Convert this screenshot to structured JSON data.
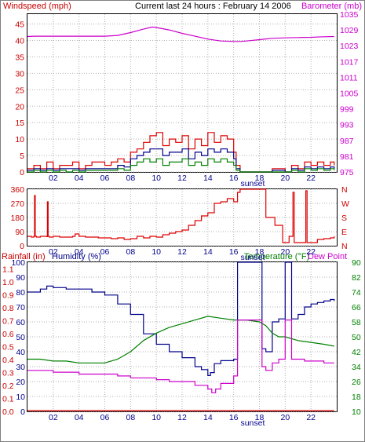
{
  "chart_data": [
    {
      "type": "line",
      "title": "Current last 24 hours : February 14 2006",
      "left_axis_label": "Windspeed (mph)",
      "right_axis_label": "Barometer (mb)",
      "left_ticks": [
        "0",
        "5",
        "10",
        "15",
        "20",
        "25",
        "30",
        "35",
        "40",
        "45"
      ],
      "right_ticks": [
        "975",
        "981",
        "987",
        "993",
        "999",
        "1005",
        "1011",
        "1017",
        "1023",
        "1029",
        "1035"
      ],
      "ylim_left": [
        0,
        48
      ],
      "ylim_right": [
        975,
        1035
      ],
      "x_ticks": [
        "02",
        "04",
        "06",
        "08",
        "10",
        "12",
        "14",
        "16",
        "18",
        "20",
        "22"
      ],
      "sunset_label": "sunset",
      "colors": {
        "wind_max": "#dd0000",
        "wind_avg": "#00008b",
        "wind_min": "#008000",
        "barometer": "#cc00cc",
        "left_axis": "#cc0000",
        "right_axis": "#cc00cc"
      },
      "series": [
        {
          "key": "barometer",
          "x": [
            0,
            0.5,
            6,
            7,
            8,
            9,
            9.7,
            10,
            11,
            12,
            13,
            14,
            15,
            16,
            16.5,
            17,
            18,
            19,
            20,
            21,
            22,
            23,
            23.8
          ],
          "values": [
            1026.5,
            1026.6,
            1026.6,
            1026.9,
            1028.0,
            1029.3,
            1030.1,
            1029.9,
            1029.0,
            1027.7,
            1026.6,
            1025.5,
            1024.8,
            1024.6,
            1024.6,
            1024.8,
            1025.3,
            1025.8,
            1026.0,
            1026.1,
            1026.2,
            1026.4,
            1026.5
          ]
        },
        {
          "key": "wind_max",
          "x": [
            0,
            0.5,
            1,
            1.5,
            2,
            2.5,
            3,
            3.5,
            4,
            4.5,
            5,
            5.5,
            6,
            6.5,
            7,
            7.5,
            8,
            8.5,
            9,
            9.5,
            10,
            10.5,
            11,
            11.5,
            12,
            12.5,
            13,
            13.5,
            14,
            14.5,
            15,
            15.5,
            16,
            16.2,
            16.5,
            17,
            18,
            19,
            20,
            20.5,
            21,
            21.5,
            22,
            22.5,
            23,
            23.5,
            23.8
          ],
          "values": [
            1,
            2,
            1,
            3,
            1,
            2,
            2,
            3,
            1,
            2,
            3,
            3,
            2,
            3,
            4,
            3,
            6,
            7,
            9,
            11,
            12,
            8,
            10,
            9,
            11,
            7,
            10,
            8,
            12,
            9,
            11,
            10,
            6,
            2,
            0,
            0,
            0,
            1,
            0,
            2,
            1,
            3,
            2,
            3,
            2,
            3,
            2
          ]
        },
        {
          "key": "wind_avg",
          "x": [
            0,
            0.5,
            1,
            1.5,
            2,
            2.5,
            3,
            3.5,
            4,
            4.5,
            5,
            5.5,
            6,
            6.5,
            7,
            7.5,
            8,
            8.5,
            9,
            9.5,
            10,
            10.5,
            11,
            11.5,
            12,
            12.5,
            13,
            13.5,
            14,
            14.5,
            15,
            15.5,
            16,
            16.2,
            16.5,
            17,
            18,
            19,
            20,
            20.5,
            21,
            21.5,
            22,
            22.5,
            23,
            23.5,
            23.8
          ],
          "values": [
            0.5,
            1,
            0.5,
            1,
            0.5,
            1,
            1,
            1,
            0.5,
            1,
            1,
            1,
            1,
            1,
            2,
            1.5,
            4,
            5,
            6,
            7,
            7,
            5,
            6,
            6,
            7,
            4,
            6,
            5,
            7,
            6,
            7,
            6,
            4,
            1,
            0,
            0,
            0,
            0.5,
            0,
            1,
            0.5,
            1.5,
            1,
            1.5,
            1,
            1.5,
            1
          ]
        },
        {
          "key": "wind_min",
          "x": [
            0,
            0.5,
            1,
            1.5,
            2,
            2.5,
            3,
            3.5,
            4,
            4.5,
            5,
            5.5,
            6,
            6.5,
            7,
            7.5,
            8,
            8.5,
            9,
            9.5,
            10,
            10.5,
            11,
            11.5,
            12,
            12.5,
            13,
            13.5,
            14,
            14.5,
            15,
            15.5,
            16,
            16.2,
            16.5,
            17,
            18,
            19,
            20,
            20.5,
            21,
            21.5,
            22,
            22.5,
            23,
            23.5,
            23.8
          ],
          "values": [
            0,
            0.5,
            0,
            0.5,
            0,
            0.5,
            0,
            0.5,
            0,
            0.5,
            0.5,
            0.5,
            0.5,
            0.5,
            1,
            0.5,
            2,
            3,
            4,
            3,
            4,
            2,
            3,
            3,
            4,
            2,
            3,
            2,
            4,
            3,
            4,
            3,
            2,
            0.5,
            0,
            0,
            0,
            0,
            0,
            0.5,
            0,
            1,
            0.5,
            1,
            0.5,
            1,
            0.5
          ]
        }
      ]
    },
    {
      "type": "line",
      "left_ticks": [
        "0",
        "90",
        "180",
        "270",
        "360"
      ],
      "right_ticks": [
        "N",
        "E",
        "S",
        "W",
        "N"
      ],
      "ylim": [
        0,
        360
      ],
      "x_ticks": [
        "02",
        "04",
        "06",
        "08",
        "10",
        "12",
        "14",
        "16",
        "18",
        "20",
        "22"
      ],
      "sunset_label": "sunset",
      "colors": {
        "direction": "#dd0000",
        "left_axis": "#cc0000",
        "right_axis": "#cc0000"
      },
      "series": [
        {
          "key": "direction",
          "x": [
            0,
            0.3,
            0.5,
            0.55,
            0.6,
            0.7,
            1,
            1.5,
            1.55,
            1.6,
            1.7,
            2,
            2.5,
            3,
            3.5,
            3.7,
            4,
            4.5,
            5,
            5.5,
            6,
            6.5,
            7,
            7.5,
            8,
            8.5,
            9,
            9.5,
            10,
            10.5,
            11,
            11.5,
            12,
            12.5,
            13,
            13.5,
            14,
            14.5,
            15,
            15.5,
            16,
            16.3,
            16.5,
            17,
            17.5,
            18,
            18.5,
            19,
            19.2,
            19.5,
            19.8,
            20,
            20.3,
            20.5,
            20.6,
            20.7,
            21,
            21.5,
            21.6,
            21.7,
            22,
            22.5,
            23,
            23.5,
            23.8
          ],
          "values": [
            60,
            55,
            60,
            320,
            60,
            55,
            60,
            58,
            280,
            60,
            55,
            60,
            55,
            55,
            60,
            75,
            60,
            55,
            55,
            50,
            50,
            45,
            50,
            40,
            45,
            60,
            50,
            60,
            55,
            70,
            80,
            90,
            100,
            130,
            160,
            190,
            210,
            270,
            280,
            300,
            280,
            340,
            360,
            360,
            360,
            360,
            180,
            180,
            130,
            130,
            20,
            20,
            60,
            60,
            340,
            20,
            20,
            20,
            350,
            20,
            20,
            40,
            45,
            50,
            60
          ]
        }
      ]
    },
    {
      "type": "line",
      "left_axis_label": "Rainfall (in)",
      "humidity_label": "Humidity (%)",
      "right_axis_label": "Temperature (°F)",
      "dewpoint_label": "Dew Point",
      "rain_ticks": [
        "0.0",
        "0.1",
        "0.2",
        "0.3",
        "0.4",
        "0.5",
        "0.6",
        "0.7",
        "0.8",
        "0.9",
        "1.0",
        "1.1"
      ],
      "humidity_ticks": [
        "0",
        "10",
        "20",
        "30",
        "40",
        "50",
        "60",
        "70",
        "80",
        "90",
        "100"
      ],
      "temp_ticks": [
        "10",
        "18",
        "26",
        "34",
        "42",
        "50",
        "58",
        "66",
        "74",
        "82",
        "90"
      ],
      "ylim_humidity": [
        0,
        100
      ],
      "ylim_temp": [
        10,
        90
      ],
      "x_ticks": [
        "02",
        "04",
        "06",
        "08",
        "10",
        "12",
        "14",
        "16",
        "18",
        "20",
        "22"
      ],
      "sunset_label": "sunset",
      "colors": {
        "rain": "#dd0000",
        "humidity": "#00008b",
        "temperature": "#008000",
        "dewpoint": "#cc00cc",
        "rain_axis": "#cc0000",
        "humidity_axis": "#00008b",
        "temp_axis": "#008000"
      },
      "series": [
        {
          "key": "humidity",
          "x": [
            0,
            1,
            1.5,
            2,
            3,
            4,
            5,
            6,
            7,
            8,
            9,
            10,
            11,
            12,
            13,
            13.5,
            14,
            14.2,
            14.5,
            15,
            16,
            16.3,
            16.5,
            17,
            17.5,
            18,
            18.2,
            18.5,
            19,
            19.5,
            20,
            20.3,
            20.5,
            21,
            21.5,
            22,
            22.5,
            23,
            23.5,
            23.8
          ],
          "values": [
            80,
            82,
            84,
            83,
            82,
            82,
            80,
            78,
            72,
            65,
            52,
            45,
            40,
            36,
            30,
            28,
            24,
            26,
            32,
            34,
            35,
            100,
            100,
            100,
            100,
            100,
            42,
            40,
            60,
            62,
            100,
            100,
            62,
            65,
            70,
            72,
            73,
            74,
            75,
            74
          ]
        },
        {
          "key": "temperature",
          "x": [
            0,
            1,
            2,
            3,
            4,
            5,
            6,
            7,
            8,
            9,
            10,
            11,
            12,
            13,
            14,
            15,
            16,
            17,
            18,
            18.5,
            19,
            19.5,
            20,
            21,
            22,
            23,
            23.8
          ],
          "values": [
            38,
            38,
            37,
            37,
            36,
            36,
            36,
            38,
            42,
            48,
            52,
            55,
            57,
            59,
            61,
            60,
            59,
            59,
            58,
            56,
            52,
            50,
            50,
            48,
            47,
            46,
            45
          ]
        },
        {
          "key": "dewpoint",
          "x": [
            0,
            1,
            2,
            3,
            4,
            5,
            6,
            7,
            8,
            9,
            10,
            11,
            12,
            13,
            14,
            14.3,
            14.6,
            15,
            16,
            16.3,
            16.5,
            17,
            17.5,
            18,
            18.2,
            18.5,
            19,
            19.5,
            20,
            20.3,
            20.5,
            21,
            21.5,
            22,
            22.5,
            23,
            23.8
          ],
          "values": [
            32,
            32,
            31,
            31,
            30,
            30,
            30,
            29,
            28,
            28,
            27,
            26,
            26,
            24,
            22,
            20,
            22,
            25,
            29,
            59,
            59,
            59,
            59,
            59,
            34,
            32,
            36,
            38,
            59,
            59,
            38,
            38,
            37,
            37,
            37,
            36,
            36
          ]
        },
        {
          "key": "rain",
          "x": [
            0,
            23.8
          ],
          "values": [
            0,
            0
          ]
        }
      ]
    }
  ]
}
